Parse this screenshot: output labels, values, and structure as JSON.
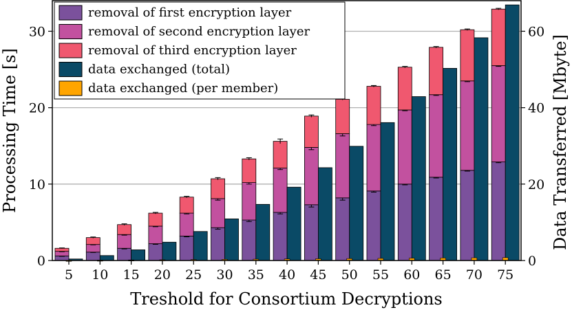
{
  "chart_data": {
    "type": "bar",
    "xlabel": "Treshold for Consortium Decryptions",
    "ylabel_left": "Processing Time [s]",
    "ylabel_right": "Data Transferred [Mbyte]",
    "categories": [
      "5",
      "10",
      "15",
      "20",
      "25",
      "30",
      "35",
      "40",
      "45",
      "50",
      "55",
      "60",
      "65",
      "70",
      "75"
    ],
    "ylim_left": [
      0,
      34
    ],
    "ylim_right": [
      0,
      68
    ],
    "yticks_left": [
      "0",
      "10",
      "20",
      "30"
    ],
    "yticks_right": [
      "0",
      "20",
      "40",
      "60"
    ],
    "grid": "horizontal",
    "legend_position": "top-left",
    "stacked_series": [
      {
        "name": "removal of first encryption layer",
        "axis": "left",
        "color": "#7b519c",
        "values": [
          0.6,
          1.1,
          1.6,
          2.2,
          3.2,
          4.3,
          5.3,
          6.3,
          7.3,
          8.2,
          9.1,
          10.0,
          10.9,
          11.8,
          12.9
        ]
      },
      {
        "name": "removal of second encryption layer",
        "axis": "left",
        "color": "#c2519f",
        "values": [
          0.6,
          1.0,
          1.8,
          2.3,
          3.0,
          3.8,
          4.9,
          5.8,
          7.5,
          8.4,
          8.7,
          9.7,
          10.8,
          11.7,
          12.6
        ]
      },
      {
        "name": "removal of third encryption layer",
        "axis": "left",
        "color": "#f0586f",
        "values": [
          0.4,
          0.9,
          1.3,
          1.7,
          2.1,
          2.6,
          3.1,
          3.5,
          4.1,
          4.5,
          5.0,
          5.6,
          6.2,
          6.7,
          7.4
        ]
      }
    ],
    "total_errors": [
      0.05,
      0.08,
      0.1,
      0.1,
      0.1,
      0.15,
      0.15,
      0.3,
      0.15,
      0.1,
      0.1,
      0.1,
      0.1,
      0.1,
      0.1
    ],
    "layer_errors": [
      0.05,
      0.05,
      0.08,
      0.08,
      0.1,
      0.2,
      0.2,
      0.2,
      0.3,
      0.3,
      0.15,
      0.1,
      0.1,
      0.1,
      0.1
    ],
    "side_series": [
      {
        "name": "data exchanged (total)",
        "axis": "right",
        "color": "#0a4a66",
        "values": [
          0.4,
          1.3,
          2.8,
          4.8,
          7.6,
          10.9,
          14.7,
          19.2,
          24.3,
          29.9,
          36.1,
          42.9,
          50.3,
          58.3,
          66.9
        ]
      },
      {
        "name": "data exchanged (per member)",
        "axis": "right",
        "color": "#ffa500",
        "values": [
          0.05,
          0.1,
          0.15,
          0.2,
          0.25,
          0.3,
          0.35,
          0.4,
          0.45,
          0.5,
          0.55,
          0.6,
          0.65,
          0.7,
          0.75
        ]
      }
    ]
  }
}
